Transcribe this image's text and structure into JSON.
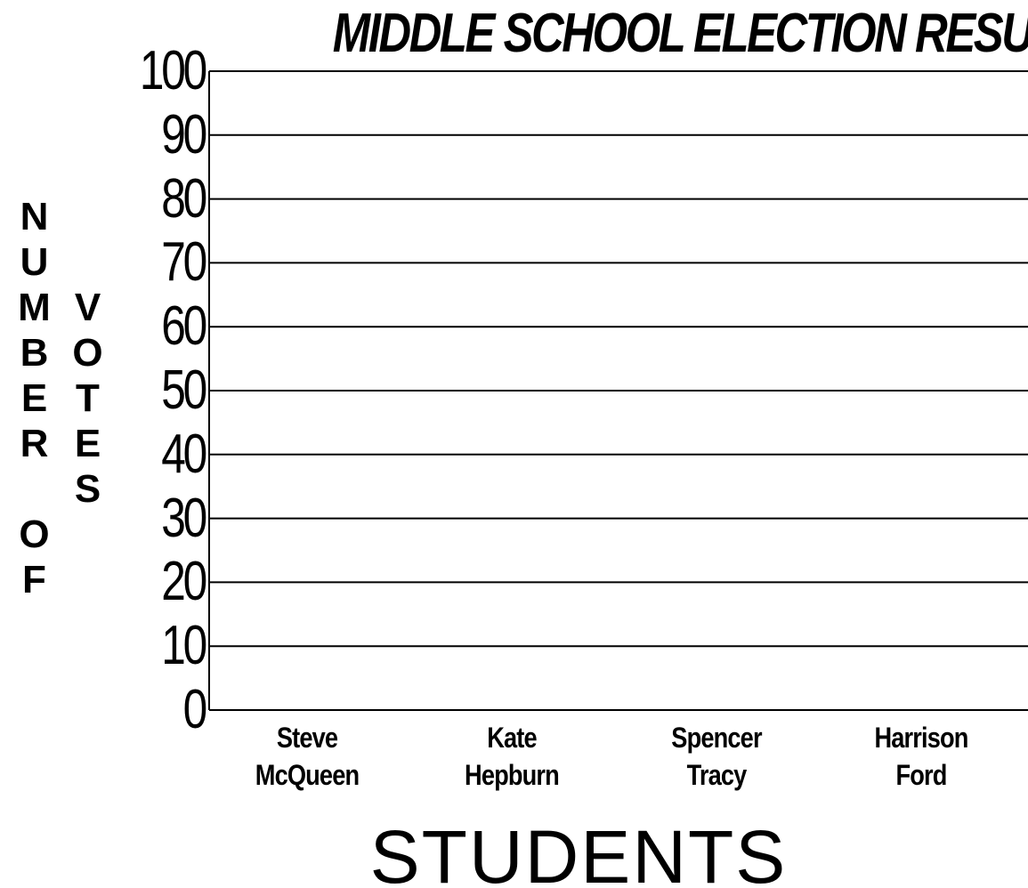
{
  "chart_data": {
    "type": "bar",
    "title": "MIDDLE SCHOOL ELECTION RESULTS",
    "xlabel": "STUDENTS",
    "ylabel": "NUMBER OF VOTES",
    "categories": [
      "Steve McQueen",
      "Kate Hepburn",
      "Spencer Tracy",
      "Harrison Ford"
    ],
    "ylim": [
      0,
      100
    ],
    "yticks": [
      0,
      10,
      20,
      30,
      40,
      50,
      60,
      70,
      80,
      90,
      100
    ],
    "grid": true
  }
}
